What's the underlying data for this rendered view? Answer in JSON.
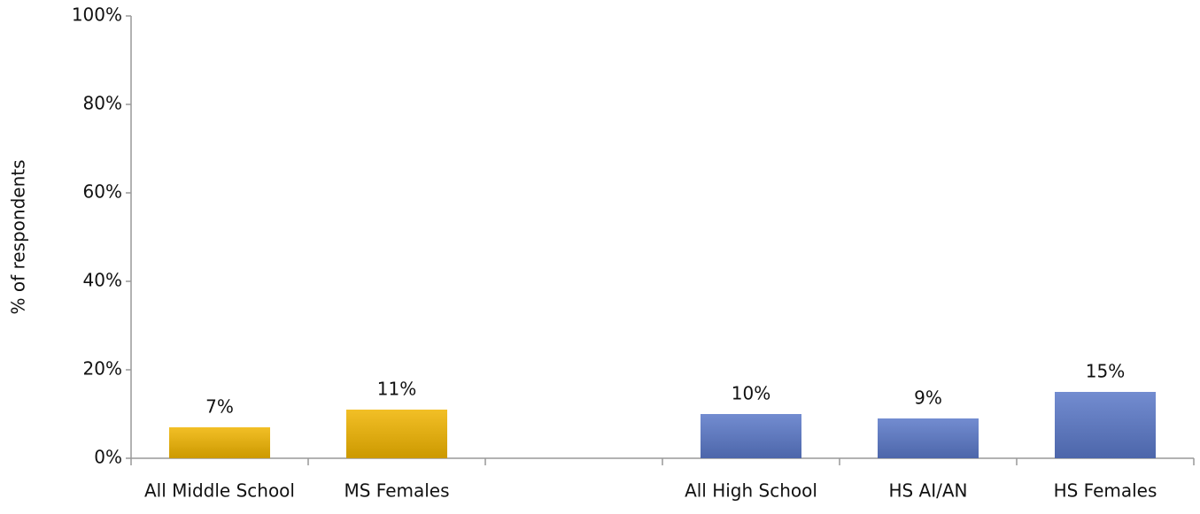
{
  "chart_data": {
    "type": "bar",
    "y_label": "% of respondents",
    "categories": [
      "All Middle School",
      "MS Females",
      null,
      "All High School",
      "HS AI/AN",
      "HS Females"
    ],
    "values": [
      7,
      11,
      null,
      10,
      9,
      15
    ],
    "value_labels": [
      "7%",
      "11%",
      null,
      "10%",
      "9%",
      "15%"
    ],
    "colors": [
      "#f0b400",
      "#f0b400",
      null,
      "#5a78c8",
      "#5a78c8",
      "#5a78c8"
    ],
    "ylim": [
      0,
      100
    ],
    "yticks": [
      {
        "value": 0,
        "label": "0%"
      },
      {
        "value": 20,
        "label": "20%"
      },
      {
        "value": 40,
        "label": "40%"
      },
      {
        "value": 60,
        "label": "60%"
      },
      {
        "value": 80,
        "label": "80%"
      },
      {
        "value": 100,
        "label": "100%"
      }
    ],
    "grid": false
  }
}
